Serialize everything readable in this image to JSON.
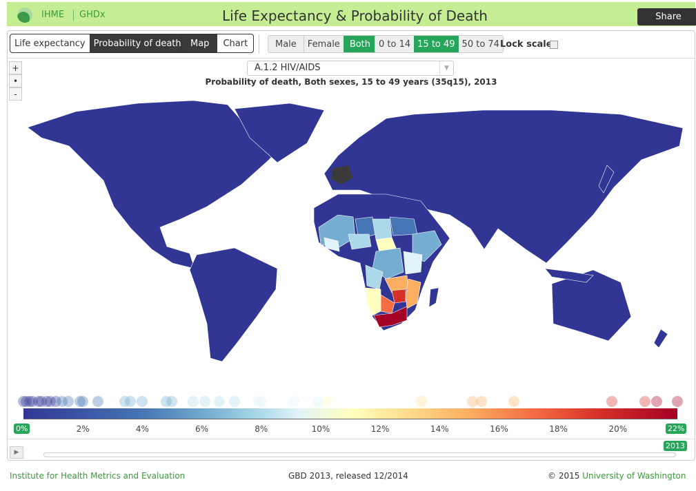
{
  "header": {
    "org": "IHME",
    "product": "GHDx",
    "title": "Life Expectancy & Probability of Death",
    "share": "Share"
  },
  "controls": {
    "measure": [
      {
        "label": "Life expectancy",
        "active": false
      },
      {
        "label": "Probability of death",
        "active": true
      }
    ],
    "view": [
      {
        "label": "Map",
        "active": true
      },
      {
        "label": "Chart",
        "active": false
      }
    ],
    "sex": [
      {
        "label": "Male",
        "active": false
      },
      {
        "label": "Female",
        "active": false
      },
      {
        "label": "Both",
        "active": true
      }
    ],
    "age": [
      {
        "label": "0 to 14",
        "active": false
      },
      {
        "label": "15 to 49",
        "active": true
      },
      {
        "label": "50 to 74",
        "active": false
      }
    ],
    "lock_scale": "Lock scale",
    "lock_checked": false
  },
  "zoom": {
    "plus": "+",
    "reset": "•",
    "minus": "-"
  },
  "cause": {
    "selected": "A.1.2 HIV/AIDS"
  },
  "map_title": "Probability of death, Both sexes, 15 to 49 years (35q15), 2013",
  "legend": {
    "ticks": [
      "2%",
      "4%",
      "6%",
      "8%",
      "10%",
      "12%",
      "14%",
      "16%",
      "18%",
      "20%"
    ],
    "min_label": "0%",
    "max_label": "22%",
    "last_tick_partial": "2",
    "country_values_percent": [
      0,
      0.1,
      0.2,
      0.3,
      0.5,
      0.6,
      0.8,
      0.9,
      1.1,
      1.3,
      1.5,
      1.9,
      2.0,
      2.5,
      3.4,
      3.6,
      4.0,
      4.8,
      5.0,
      5.7,
      6.1,
      6.6,
      7.1,
      7.9,
      8.0,
      9.1,
      9.9,
      10.2,
      13.4,
      15.1,
      15.4,
      16.5,
      19.8,
      20.9,
      21.3,
      22.0
    ],
    "colors": [
      "#313695",
      "#4575b4",
      "#74add1",
      "#abd9e9",
      "#e0f3f8",
      "#ffffbf",
      "#fee090",
      "#fdae61",
      "#f46d43",
      "#d73027",
      "#a50026"
    ]
  },
  "timeline": {
    "year": "2013"
  },
  "footer": {
    "left": "Institute for Health Metrics and Evaluation",
    "center": "GBD 2013, released 12/2014",
    "right_prefix": "© 2015",
    "right_link": "University of Washington"
  }
}
